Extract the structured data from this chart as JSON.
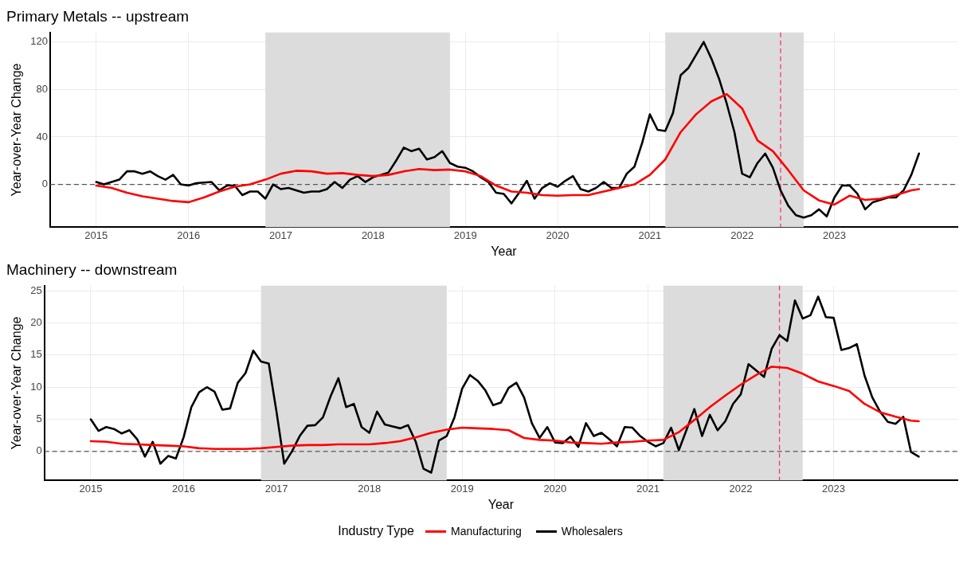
{
  "chart_data": [
    {
      "type": "line",
      "title": "Primary Metals -- upstream",
      "xlabel": "Year",
      "ylabel": "Year-over-Year Change",
      "x": [
        "2015-01",
        "2015-02",
        "2015-03",
        "2015-04",
        "2015-05",
        "2015-06",
        "2015-07",
        "2015-08",
        "2015-09",
        "2015-10",
        "2015-11",
        "2015-12",
        "2016-01",
        "2016-02",
        "2016-03",
        "2016-04",
        "2016-05",
        "2016-06",
        "2016-07",
        "2016-08",
        "2016-09",
        "2016-10",
        "2016-11",
        "2016-12",
        "2017-01",
        "2017-02",
        "2017-03",
        "2017-04",
        "2017-05",
        "2017-06",
        "2017-07",
        "2017-08",
        "2017-09",
        "2017-10",
        "2017-11",
        "2017-12",
        "2018-01",
        "2018-02",
        "2018-03",
        "2018-04",
        "2018-05",
        "2018-06",
        "2018-07",
        "2018-08",
        "2018-09",
        "2018-10",
        "2018-11",
        "2018-12",
        "2019-01",
        "2019-02",
        "2019-03",
        "2019-04",
        "2019-05",
        "2019-06",
        "2019-07",
        "2019-08",
        "2019-09",
        "2019-10",
        "2019-11",
        "2019-12",
        "2020-01",
        "2020-02",
        "2020-03",
        "2020-04",
        "2020-05",
        "2020-06",
        "2020-07",
        "2020-08",
        "2020-09",
        "2020-10",
        "2020-11",
        "2020-12",
        "2021-01",
        "2021-02",
        "2021-03",
        "2021-04",
        "2021-05",
        "2021-06",
        "2021-07",
        "2021-08",
        "2021-09",
        "2021-10",
        "2021-11",
        "2021-12",
        "2022-01",
        "2022-02",
        "2022-03",
        "2022-04",
        "2022-05",
        "2022-06",
        "2022-07",
        "2022-08",
        "2022-09",
        "2022-10",
        "2022-11",
        "2022-12",
        "2023-01",
        "2023-02",
        "2023-03",
        "2023-04",
        "2023-05",
        "2023-06",
        "2023-07",
        "2023-08",
        "2023-09",
        "2023-10",
        "2023-11",
        "2023-12"
      ],
      "series": [
        {
          "color": "#ff0000",
          "x": [
            "2015-01",
            "2015-03",
            "2015-05",
            "2015-07",
            "2015-09",
            "2015-11",
            "2016-01",
            "2016-03",
            "2016-05",
            "2016-07",
            "2016-09",
            "2016-11",
            "2017-01",
            "2017-03",
            "2017-05",
            "2017-07",
            "2017-09",
            "2017-11",
            "2018-01",
            "2018-03",
            "2018-05",
            "2018-07",
            "2018-09",
            "2018-11",
            "2019-01",
            "2019-03",
            "2019-05",
            "2019-07",
            "2019-09",
            "2019-11",
            "2020-01",
            "2020-03",
            "2020-05",
            "2020-07",
            "2020-09",
            "2020-11",
            "2021-01",
            "2021-03",
            "2021-05",
            "2021-07",
            "2021-09",
            "2021-11",
            "2022-01",
            "2022-03",
            "2022-05",
            "2022-07",
            "2022-09",
            "2022-11",
            "2023-01",
            "2023-03",
            "2023-05",
            "2023-07",
            "2023-09",
            "2023-11",
            "2023-12"
          ],
          "values": [
            -1,
            -3,
            -7,
            -10,
            -12,
            -14,
            -15,
            -11,
            -6,
            -2,
            0,
            4,
            9,
            11.5,
            11,
            9,
            9.5,
            8,
            7,
            8,
            11,
            13,
            12,
            12.5,
            11,
            7,
            -1,
            -6,
            -7,
            -9,
            -9.5,
            -9,
            -9,
            -6,
            -3,
            0,
            8,
            21,
            44,
            59,
            70,
            76,
            64,
            37,
            28,
            12,
            -5,
            -13.5,
            -17,
            -9.5,
            -13,
            -12,
            -9,
            -5,
            -4
          ]
        },
        {
          "color": "#000000",
          "values": [
            2,
            0,
            2,
            4,
            11,
            11,
            9,
            11,
            7,
            4,
            8,
            0,
            -1,
            1,
            1.5,
            2,
            -5,
            -1,
            -1,
            -9,
            -6,
            -6,
            -12,
            0,
            -4,
            -3,
            -5,
            -7,
            -6,
            -6,
            -4,
            2,
            -3,
            4,
            7,
            2,
            6,
            8,
            10,
            20,
            31,
            28,
            30,
            21,
            23,
            28,
            18,
            15,
            14,
            11,
            6,
            2,
            -7,
            -8,
            -16,
            -7,
            3,
            -12,
            -3,
            1,
            -2,
            3,
            7,
            -4,
            -6,
            -3,
            2,
            -3,
            -3,
            9,
            15,
            35,
            59,
            46,
            45,
            60,
            92,
            98,
            109,
            120,
            106,
            89,
            68,
            44,
            9,
            6,
            18,
            26,
            14,
            -5,
            -18,
            -26,
            -28,
            -26,
            -21,
            -27,
            -11,
            -1,
            -1,
            -8,
            -21,
            -15,
            -13,
            -11,
            -11,
            -5,
            8,
            26
          ]
        }
      ],
      "xlim": [
        "2014-07",
        "2024-05"
      ],
      "xticks": [
        "2015",
        "2016",
        "2017",
        "2018",
        "2019",
        "2020",
        "2021",
        "2022",
        "2023"
      ],
      "ylim": [
        -36,
        128
      ],
      "yticks": [
        0,
        40,
        80,
        120
      ],
      "grid": true,
      "legend": false,
      "marker": "none",
      "line_style": "solid",
      "ref_lines": [
        {
          "axis": "y",
          "value": 0,
          "color": "#555555",
          "line_style": "dashed"
        },
        {
          "axis": "x",
          "value": "2022-06",
          "color": "#ff3366",
          "line_style": "dashed"
        }
      ],
      "bands": [
        {
          "axis": "x",
          "from": "2016-11",
          "to": "2018-11",
          "color": "#dcdcdc"
        },
        {
          "axis": "x",
          "from": "2021-03",
          "to": "2022-09",
          "color": "#dcdcdc"
        }
      ]
    },
    {
      "type": "line",
      "title": "Machinery -- downstream",
      "xlabel": "Year",
      "ylabel": "Year-over-Year Change",
      "legend_title": "Industry Type",
      "x": [
        "2015-01",
        "2015-02",
        "2015-03",
        "2015-04",
        "2015-05",
        "2015-06",
        "2015-07",
        "2015-08",
        "2015-09",
        "2015-10",
        "2015-11",
        "2015-12",
        "2016-01",
        "2016-02",
        "2016-03",
        "2016-04",
        "2016-05",
        "2016-06",
        "2016-07",
        "2016-08",
        "2016-09",
        "2016-10",
        "2016-11",
        "2016-12",
        "2017-01",
        "2017-02",
        "2017-03",
        "2017-04",
        "2017-05",
        "2017-06",
        "2017-07",
        "2017-08",
        "2017-09",
        "2017-10",
        "2017-11",
        "2017-12",
        "2018-01",
        "2018-02",
        "2018-03",
        "2018-04",
        "2018-05",
        "2018-06",
        "2018-07",
        "2018-08",
        "2018-09",
        "2018-10",
        "2018-11",
        "2018-12",
        "2019-01",
        "2019-02",
        "2019-03",
        "2019-04",
        "2019-05",
        "2019-06",
        "2019-07",
        "2019-08",
        "2019-09",
        "2019-10",
        "2019-11",
        "2019-12",
        "2020-01",
        "2020-02",
        "2020-03",
        "2020-04",
        "2020-05",
        "2020-06",
        "2020-07",
        "2020-08",
        "2020-09",
        "2020-10",
        "2020-11",
        "2020-12",
        "2021-01",
        "2021-02",
        "2021-03",
        "2021-04",
        "2021-05",
        "2021-06",
        "2021-07",
        "2021-08",
        "2021-09",
        "2021-10",
        "2021-11",
        "2021-12",
        "2022-01",
        "2022-02",
        "2022-03",
        "2022-04",
        "2022-05",
        "2022-06",
        "2022-07",
        "2022-08",
        "2022-09",
        "2022-10",
        "2022-11",
        "2022-12",
        "2023-01",
        "2023-02",
        "2023-03",
        "2023-04",
        "2023-05",
        "2023-06",
        "2023-07",
        "2023-08",
        "2023-09",
        "2023-10",
        "2023-11",
        "2023-12"
      ],
      "series": [
        {
          "name": "Manufacturing",
          "color": "#ff0000",
          "x": [
            "2015-01",
            "2015-03",
            "2015-05",
            "2015-07",
            "2015-09",
            "2015-11",
            "2016-01",
            "2016-03",
            "2016-05",
            "2016-07",
            "2016-09",
            "2016-11",
            "2017-01",
            "2017-03",
            "2017-05",
            "2017-07",
            "2017-09",
            "2017-11",
            "2018-01",
            "2018-03",
            "2018-05",
            "2018-07",
            "2018-09",
            "2018-11",
            "2019-01",
            "2019-03",
            "2019-05",
            "2019-07",
            "2019-09",
            "2019-11",
            "2020-01",
            "2020-03",
            "2020-05",
            "2020-07",
            "2020-09",
            "2020-11",
            "2021-01",
            "2021-03",
            "2021-05",
            "2021-07",
            "2021-09",
            "2021-11",
            "2022-01",
            "2022-03",
            "2022-05",
            "2022-07",
            "2022-09",
            "2022-11",
            "2023-01",
            "2023-03",
            "2023-05",
            "2023-07",
            "2023-09",
            "2023-11",
            "2023-12"
          ],
          "values": [
            1.6,
            1.5,
            1.2,
            1.1,
            1,
            0.9,
            0.8,
            0.5,
            0.4,
            0.4,
            0.4,
            0.5,
            0.7,
            0.9,
            1,
            1,
            1.1,
            1.1,
            1.1,
            1.3,
            1.6,
            2.2,
            2.9,
            3.4,
            3.7,
            3.6,
            3.5,
            3.3,
            2.1,
            1.8,
            1.7,
            1.4,
            1.3,
            1.2,
            1.4,
            1.5,
            1.7,
            1.8,
            3,
            4.9,
            6.9,
            8.7,
            10.4,
            11.9,
            13.2,
            13,
            12.1,
            10.9,
            10.2,
            9.4,
            7.4,
            6.1,
            5.4,
            4.8,
            4.7
          ]
        },
        {
          "name": "Wholesalers",
          "color": "#000000",
          "values": [
            5,
            3.2,
            3.8,
            3.5,
            2.8,
            3.3,
            1.9,
            -0.8,
            1.5,
            -1.9,
            -0.7,
            -1.1,
            2.2,
            6.9,
            9.2,
            10,
            9.3,
            6.5,
            6.7,
            10.7,
            12.2,
            15.7,
            14,
            13.7,
            6.2,
            -1.9,
            0,
            2.4,
            4,
            4.1,
            5.3,
            8.6,
            11.4,
            6.9,
            7.4,
            3.8,
            2.9,
            6.2,
            4.2,
            3.9,
            3.6,
            4.1,
            1.5,
            -2.7,
            -3.3,
            1.7,
            2.4,
            5.3,
            9.8,
            11.9,
            11,
            9.5,
            7.2,
            7.6,
            9.9,
            10.7,
            8.4,
            4.4,
            2.1,
            3.8,
            1.4,
            1.3,
            2.3,
            0.7,
            4.4,
            2.4,
            2.9,
            1.9,
            0.8,
            3.8,
            3.7,
            2.4,
            1.5,
            0.8,
            1.3,
            3.7,
            0.2,
            3.4,
            6.6,
            2.4,
            5.7,
            3.3,
            4.7,
            7.4,
            8.9,
            13.6,
            12.6,
            11.6,
            16,
            18.1,
            17.2,
            23.5,
            20.7,
            21.2,
            24.1,
            20.9,
            20.8,
            15.8,
            16.1,
            16.7,
            11.8,
            8.4,
            6.2,
            4.6,
            4.3,
            5.4,
            -0.1,
            -0.8
          ]
        }
      ],
      "xlim": [
        "2014-07",
        "2024-05"
      ],
      "xticks": [
        "2015",
        "2016",
        "2017",
        "2018",
        "2019",
        "2020",
        "2021",
        "2022",
        "2023"
      ],
      "ylim": [
        -4.5,
        25.8
      ],
      "yticks": [
        0,
        5,
        10,
        15,
        20,
        25
      ],
      "grid": true,
      "legend": "bottom",
      "marker": "none",
      "line_style": "solid",
      "ref_lines": [
        {
          "axis": "y",
          "value": 0,
          "color": "#555555",
          "line_style": "dashed"
        },
        {
          "axis": "x",
          "value": "2022-06",
          "color": "#ff3366",
          "line_style": "dashed"
        }
      ],
      "bands": [
        {
          "axis": "x",
          "from": "2016-11",
          "to": "2018-11",
          "color": "#dcdcdc"
        },
        {
          "axis": "x",
          "from": "2021-03",
          "to": "2022-09",
          "color": "#dcdcdc"
        }
      ]
    }
  ]
}
